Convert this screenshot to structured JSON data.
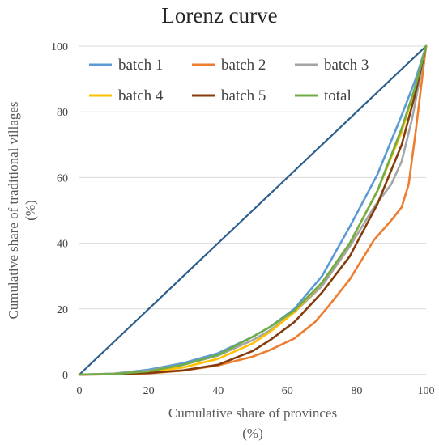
{
  "chart_data": {
    "type": "line",
    "title": "Lorenz curve",
    "xlabel": "Cumulative share of provinces",
    "xlabel_unit": "(%)",
    "ylabel": "Cumulative share of traditional villages",
    "ylabel_unit": "(%)",
    "xlim": [
      0,
      100
    ],
    "ylim": [
      0,
      100
    ],
    "xticks": [
      0,
      20,
      40,
      60,
      80,
      100
    ],
    "yticks": [
      0,
      20,
      40,
      60,
      80,
      100
    ],
    "grid": "horizontal",
    "legend_position": "top",
    "series": [
      {
        "name": "",
        "color": "#2e5f8c",
        "x": [
          0,
          100
        ],
        "y": [
          0,
          100
        ]
      },
      {
        "name": "batch 1",
        "color": "#5b9bd5",
        "x": [
          0,
          10,
          20,
          30,
          40,
          50,
          55,
          62,
          70,
          78,
          86,
          93,
          97,
          100
        ],
        "y": [
          0,
          0.3,
          1.5,
          3.5,
          6.5,
          11.5,
          14.5,
          20,
          30,
          45,
          61,
          79,
          90,
          100
        ]
      },
      {
        "name": "batch 2",
        "color": "#ed7d31",
        "x": [
          0,
          10,
          20,
          30,
          40,
          50,
          55,
          62,
          68,
          72,
          78,
          85,
          90,
          93,
          95,
          97,
          100
        ],
        "y": [
          0,
          0.1,
          0.4,
          1.2,
          2.8,
          5.5,
          7.5,
          11,
          16,
          21,
          29,
          41,
          47,
          51,
          58,
          74,
          100
        ]
      },
      {
        "name": "batch 3",
        "color": "#a5a5a5",
        "x": [
          0,
          10,
          20,
          30,
          40,
          50,
          55,
          62,
          70,
          78,
          85,
          90,
          93,
          96,
          100
        ],
        "y": [
          0,
          0.3,
          1.2,
          3,
          5.8,
          10.5,
          13.5,
          19,
          27,
          39,
          51,
          58,
          65,
          78,
          100
        ]
      },
      {
        "name": "batch 4",
        "color": "#ffc000",
        "x": [
          0,
          10,
          20,
          30,
          40,
          50,
          55,
          62,
          70,
          78,
          86,
          93,
          97,
          100
        ],
        "y": [
          0,
          0.2,
          0.8,
          2.2,
          4.8,
          9.5,
          13,
          19,
          28,
          40,
          56,
          74,
          88,
          100
        ]
      },
      {
        "name": "batch 5",
        "color": "#843c0c",
        "x": [
          0,
          10,
          20,
          30,
          40,
          50,
          55,
          62,
          70,
          78,
          86,
          93,
          97,
          100
        ],
        "y": [
          0,
          0.1,
          0.5,
          1.3,
          3,
          7.2,
          10.5,
          16,
          25,
          36,
          52,
          70,
          86,
          100
        ]
      },
      {
        "name": "total",
        "color": "#70ad47",
        "x": [
          0,
          10,
          20,
          30,
          40,
          50,
          55,
          62,
          70,
          78,
          86,
          93,
          97,
          100
        ],
        "y": [
          0,
          0.2,
          1,
          3,
          6,
          11.5,
          14.5,
          19.5,
          28,
          40,
          56,
          75,
          88,
          100
        ]
      }
    ]
  }
}
